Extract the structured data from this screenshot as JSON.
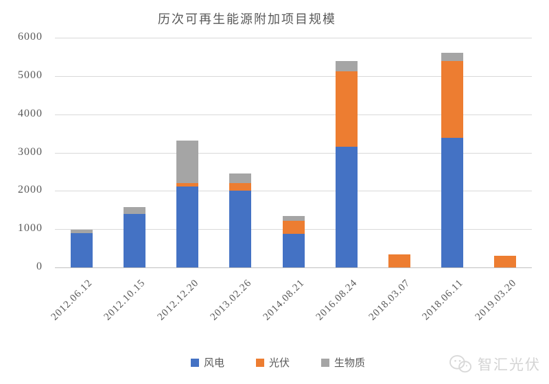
{
  "watermark": {
    "text": "智汇光伏"
  },
  "chart_data": {
    "type": "bar",
    "stacked": true,
    "title": "历次可再生能源附加项目规模",
    "categories": [
      "2012.06.12",
      "2012.10.15",
      "2012.12.20",
      "2013.02.26",
      "2014.08.21",
      "2016.08.24",
      "2018.03.07",
      "2018.06.11",
      "2019.03.20"
    ],
    "series": [
      {
        "name": "风电",
        "color": "#4472C4",
        "values": [
          890,
          1400,
          2110,
          2010,
          870,
          3150,
          0,
          3380,
          0
        ]
      },
      {
        "name": "光伏",
        "color": "#ED7D31",
        "values": [
          0,
          0,
          90,
          200,
          340,
          1980,
          340,
          2020,
          310
        ]
      },
      {
        "name": "生物质",
        "color": "#A5A5A5",
        "values": [
          90,
          170,
          1120,
          250,
          130,
          270,
          0,
          200,
          0
        ]
      }
    ],
    "ylim": [
      0,
      6000
    ],
    "ytick_step": 1000,
    "grid": true,
    "legend_position": "bottom",
    "axis_text_color": "#595959",
    "grid_color": "#D9D9D9"
  }
}
